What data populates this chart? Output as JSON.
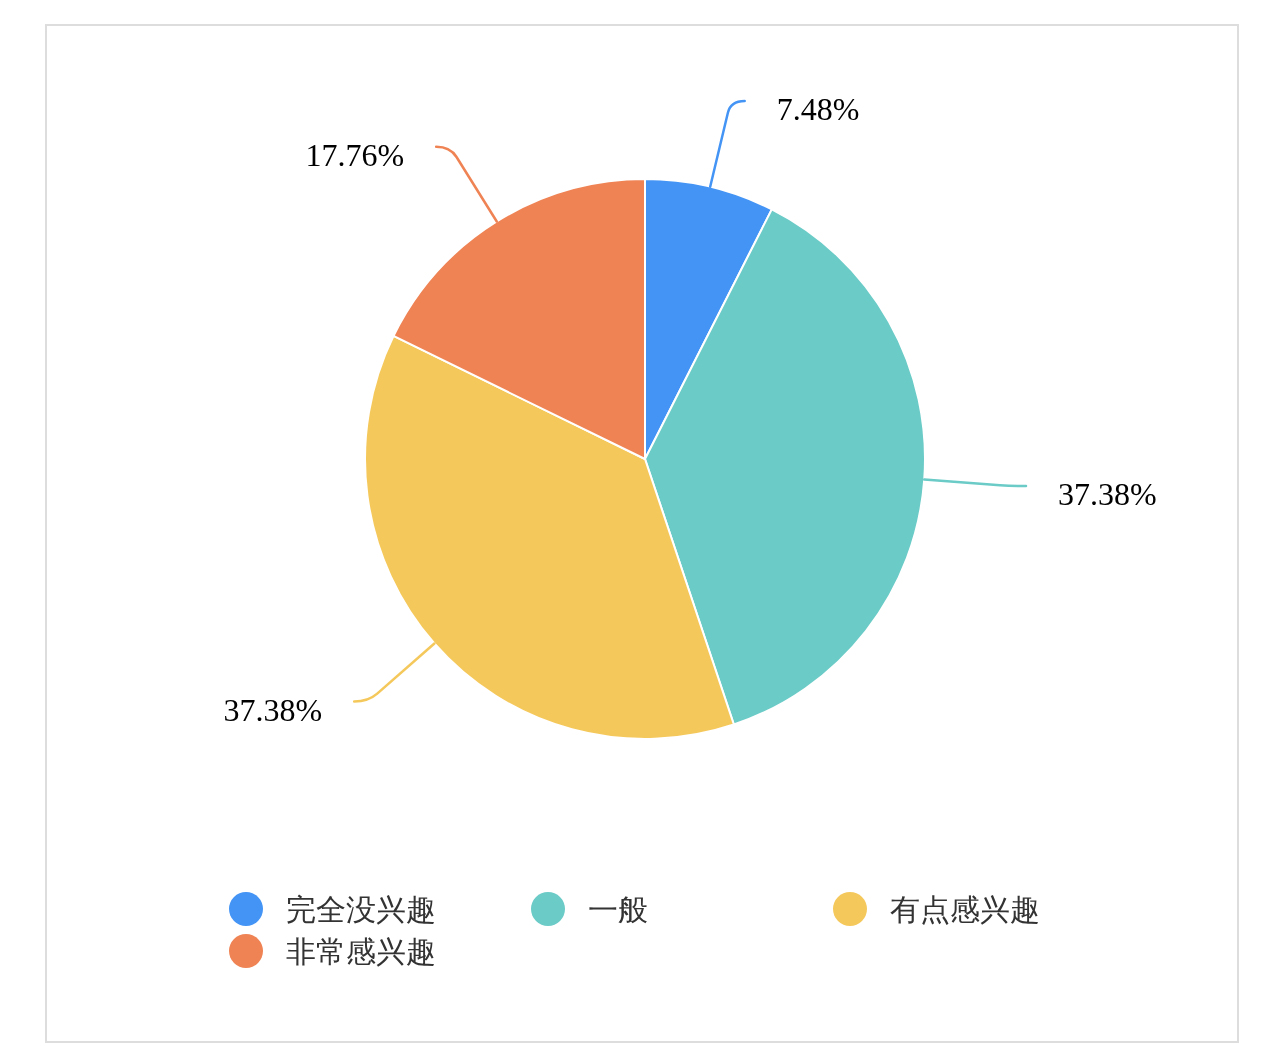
{
  "chart_data": {
    "type": "pie",
    "categories": [
      "完全没兴趣",
      "一般",
      "有点感兴趣",
      "非常感兴趣"
    ],
    "values": [
      7.48,
      37.38,
      37.38,
      17.76
    ],
    "value_labels": [
      "7.48%",
      "37.38%",
      "37.38%",
      "17.76%"
    ],
    "colors": [
      "#4394f5",
      "#6acbc7",
      "#f5c85b",
      "#ef8354"
    ],
    "legend": "bottom"
  }
}
